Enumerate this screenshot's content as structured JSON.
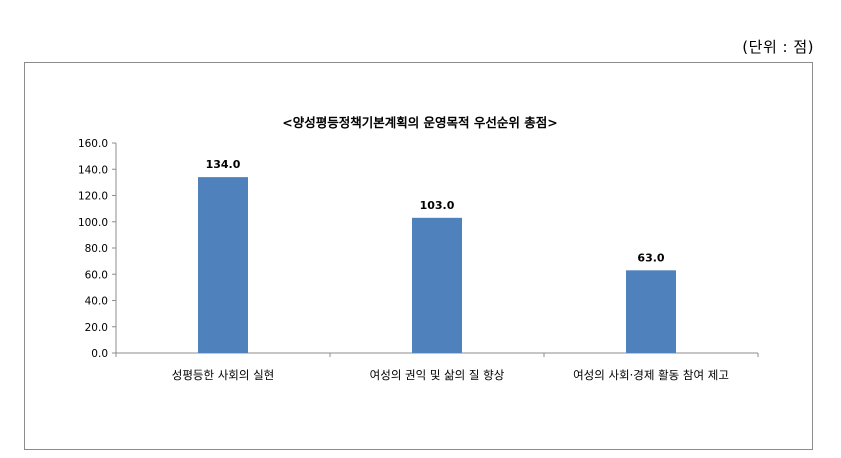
{
  "unit_label": "(단위 : 점)",
  "chart_data": {
    "type": "bar",
    "title": "<양성평등정책기본계획의 운영목적 우선순위 총점>",
    "categories": [
      "성평등한 사회의 실현",
      "여성의 권익 및 삶의 질 향상",
      "여성의 사회·경제 활동 참여 제고"
    ],
    "values": [
      134.0,
      103.0,
      63.0
    ],
    "data_labels": [
      "134.0",
      "103.0",
      "63.0"
    ],
    "ylim": [
      0,
      160
    ],
    "yticks": [
      "0.0",
      "20.0",
      "40.0",
      "60.0",
      "80.0",
      "100.0",
      "120.0",
      "140.0",
      "160.0"
    ],
    "xlabel": "",
    "ylabel": "",
    "bar_color": "#4f81bd",
    "grid": false
  }
}
